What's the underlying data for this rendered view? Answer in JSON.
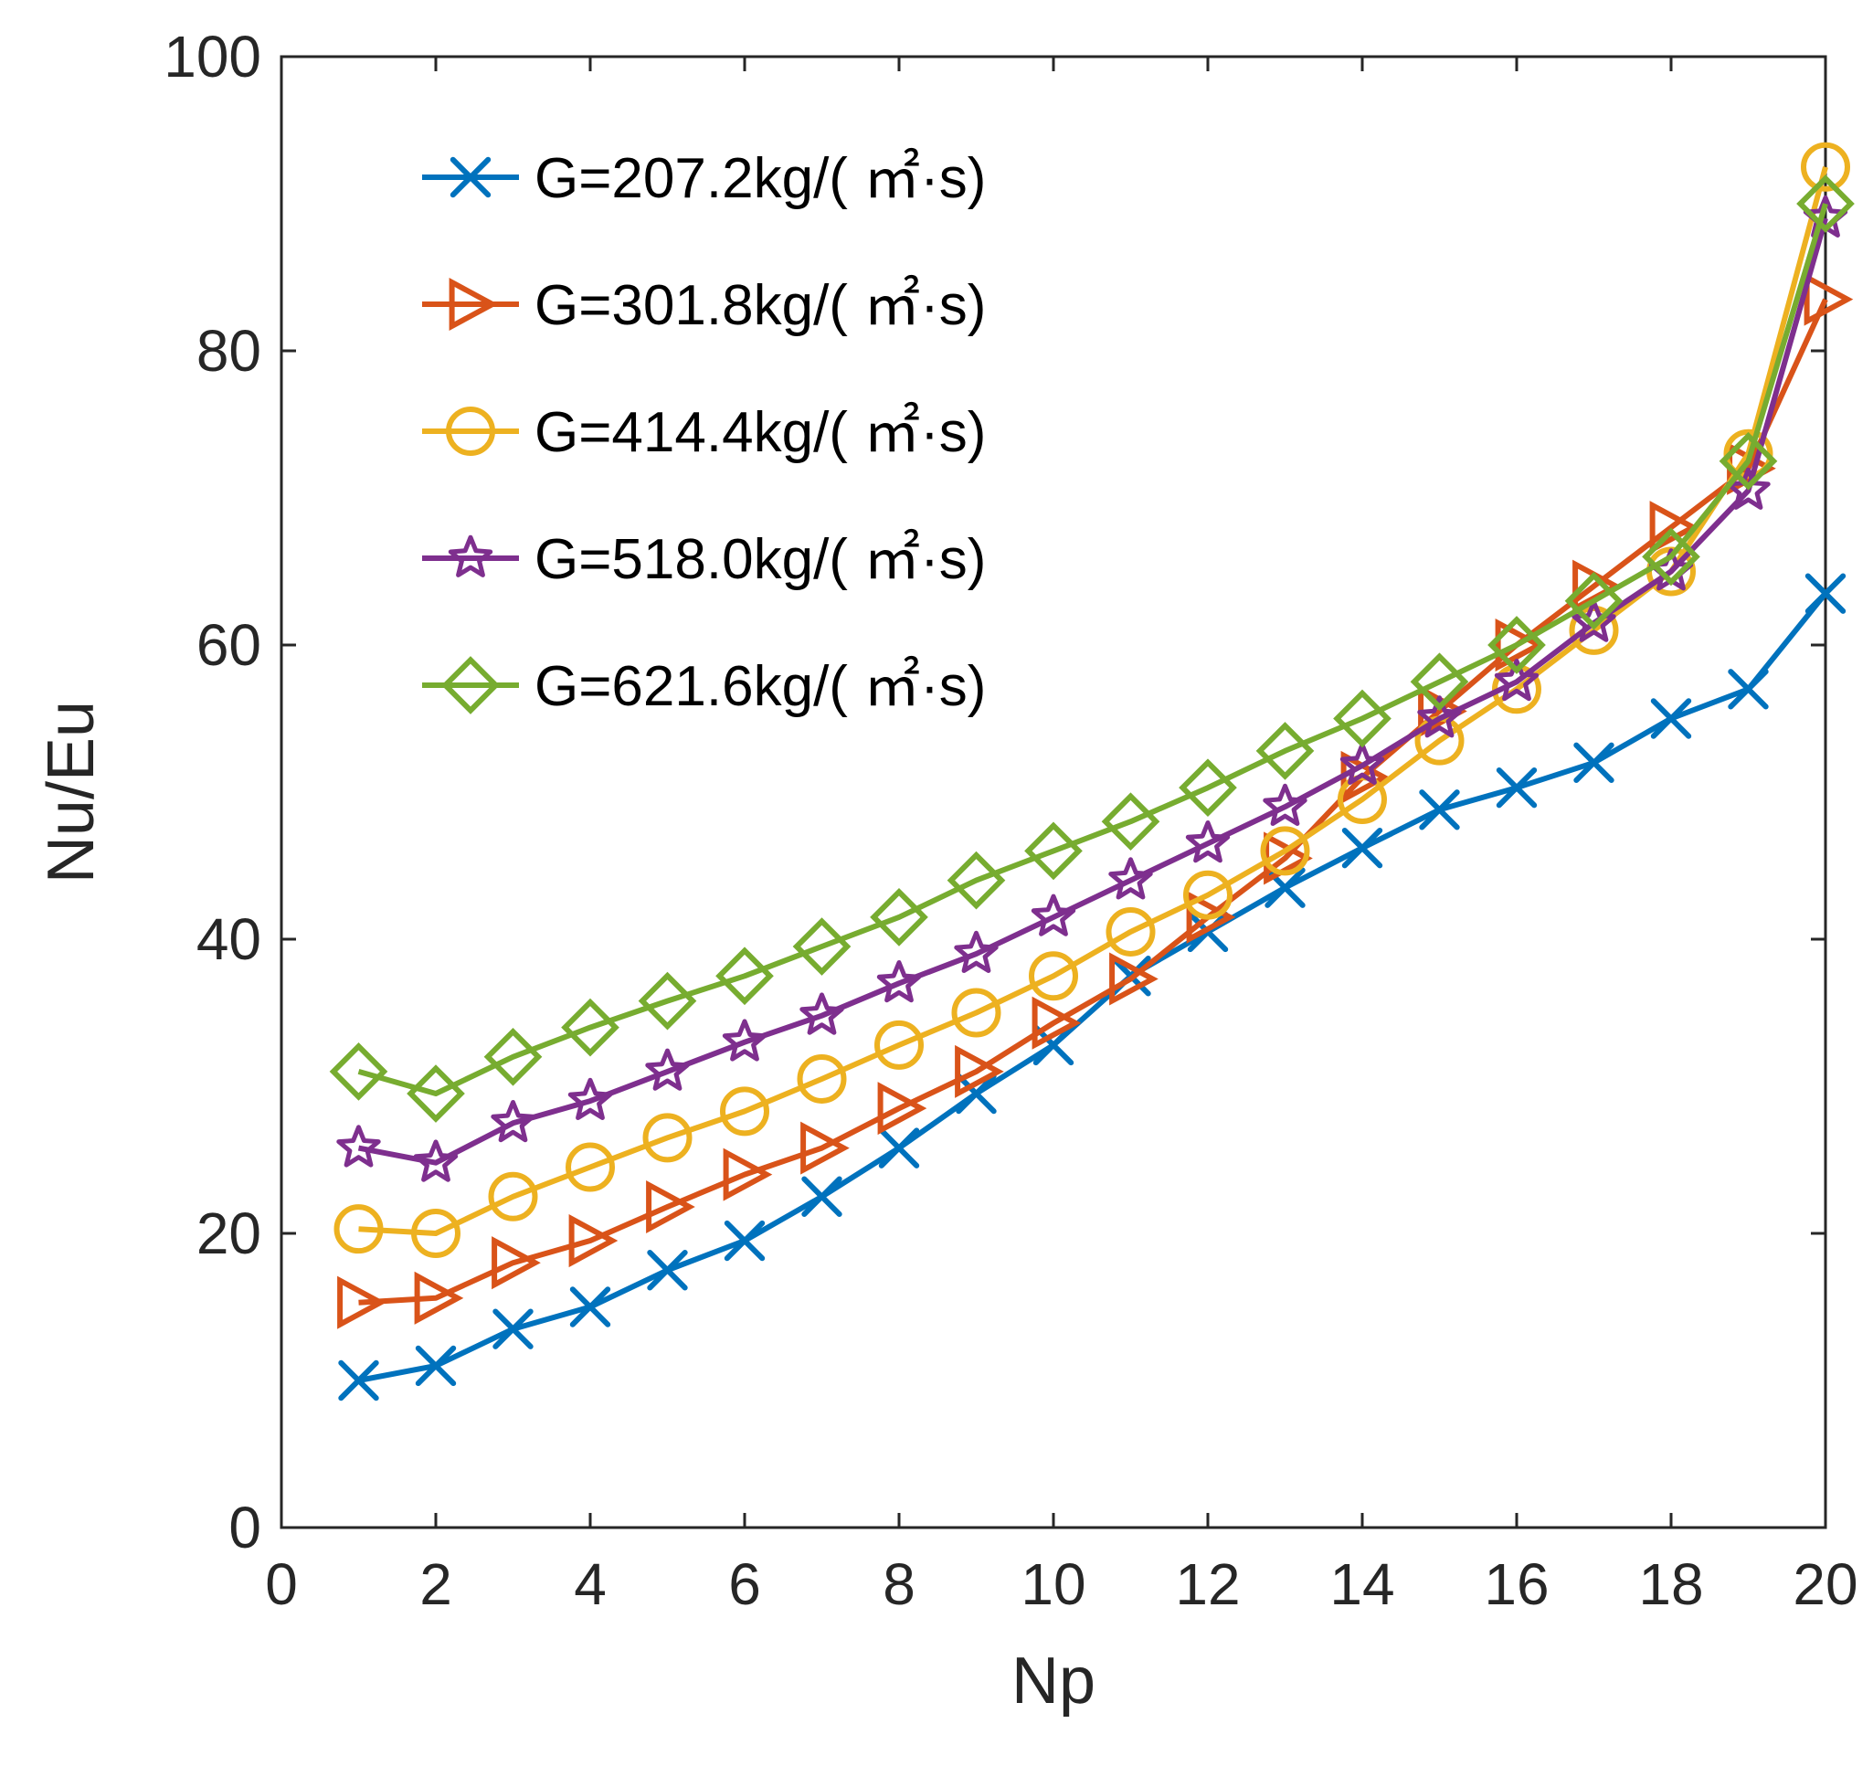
{
  "chart_data": {
    "type": "line",
    "xlabel": "Np",
    "ylabel": "Nu/Eu",
    "xlim": [
      0,
      20
    ],
    "ylim": [
      0,
      100
    ],
    "xticks": [
      0,
      2,
      4,
      6,
      8,
      10,
      12,
      14,
      16,
      18,
      20
    ],
    "yticks": [
      0,
      20,
      40,
      60,
      80,
      100
    ],
    "grid": false,
    "legend_position": "top-left",
    "x": [
      1,
      2,
      3,
      4,
      5,
      6,
      7,
      8,
      9,
      10,
      11,
      12,
      13,
      14,
      15,
      16,
      17,
      18,
      19,
      20
    ],
    "series": [
      {
        "name": "G=207.2kg/( ㎡·s)",
        "color": "#0072BD",
        "marker": "x",
        "values": [
          10.0,
          11.0,
          13.5,
          15.0,
          17.5,
          19.5,
          22.5,
          25.8,
          29.5,
          32.8,
          37.5,
          40.5,
          43.5,
          46.2,
          48.8,
          50.3,
          52.0,
          55.0,
          57.0,
          63.5
        ]
      },
      {
        "name": "G=301.8kg/( ㎡·s)",
        "color": "#D95319",
        "marker": "triangle-right",
        "values": [
          15.3,
          15.6,
          18.0,
          19.5,
          21.8,
          24.0,
          25.8,
          28.5,
          31.0,
          34.3,
          37.3,
          41.5,
          45.5,
          51.0,
          55.5,
          60.0,
          64.0,
          68.0,
          72.0,
          83.5
        ]
      },
      {
        "name": "G=414.4kg/( ㎡·s)",
        "color": "#EDB120",
        "marker": "circle",
        "values": [
          20.3,
          20.0,
          22.5,
          24.5,
          26.5,
          28.3,
          30.5,
          32.8,
          35.0,
          37.5,
          40.5,
          43.0,
          46.0,
          49.5,
          53.5,
          57.0,
          61.0,
          65.0,
          73.0,
          92.5
        ]
      },
      {
        "name": "G=518.0kg/( ㎡·s)",
        "color": "#7E2F8E",
        "marker": "star",
        "values": [
          25.8,
          24.8,
          27.5,
          29.0,
          31.0,
          33.0,
          34.8,
          37.0,
          39.0,
          41.5,
          44.0,
          46.5,
          49.0,
          51.8,
          55.0,
          57.5,
          61.5,
          65.0,
          70.5,
          89.0
        ]
      },
      {
        "name": "G=621.6kg/( ㎡·s)",
        "color": "#77AC30",
        "marker": "diamond",
        "values": [
          31.0,
          29.5,
          32.0,
          34.0,
          35.8,
          37.5,
          39.5,
          41.5,
          44.0,
          46.0,
          48.0,
          50.3,
          52.8,
          55.0,
          57.5,
          60.0,
          63.0,
          66.0,
          72.5,
          90.0
        ]
      }
    ]
  }
}
